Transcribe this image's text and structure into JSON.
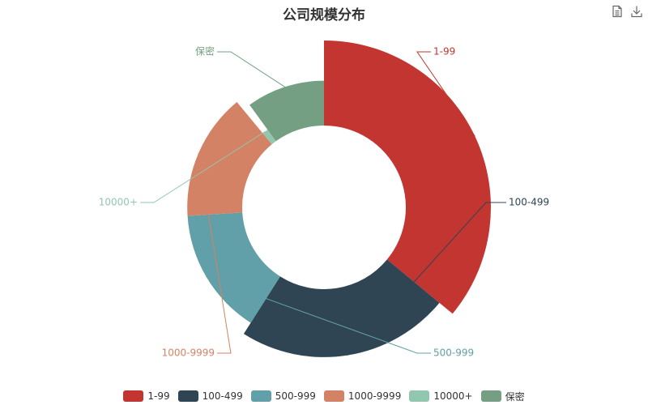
{
  "chart_data": {
    "type": "pie",
    "variant": "rose-ring",
    "title": "公司规模分布",
    "categories": [
      "1-99",
      "100-499",
      "500-999",
      "1000-9999",
      "10000+",
      "保密"
    ],
    "values": [
      36,
      23,
      15,
      15,
      1,
      10
    ],
    "colors": [
      "#c23531",
      "#2f4554",
      "#61a0a8",
      "#d48265",
      "#91c7ae",
      "#749f83"
    ],
    "legend_position": "bottom-center"
  },
  "toolbox": {
    "data_view_icon": "document-icon",
    "save_image_icon": "download-icon"
  }
}
